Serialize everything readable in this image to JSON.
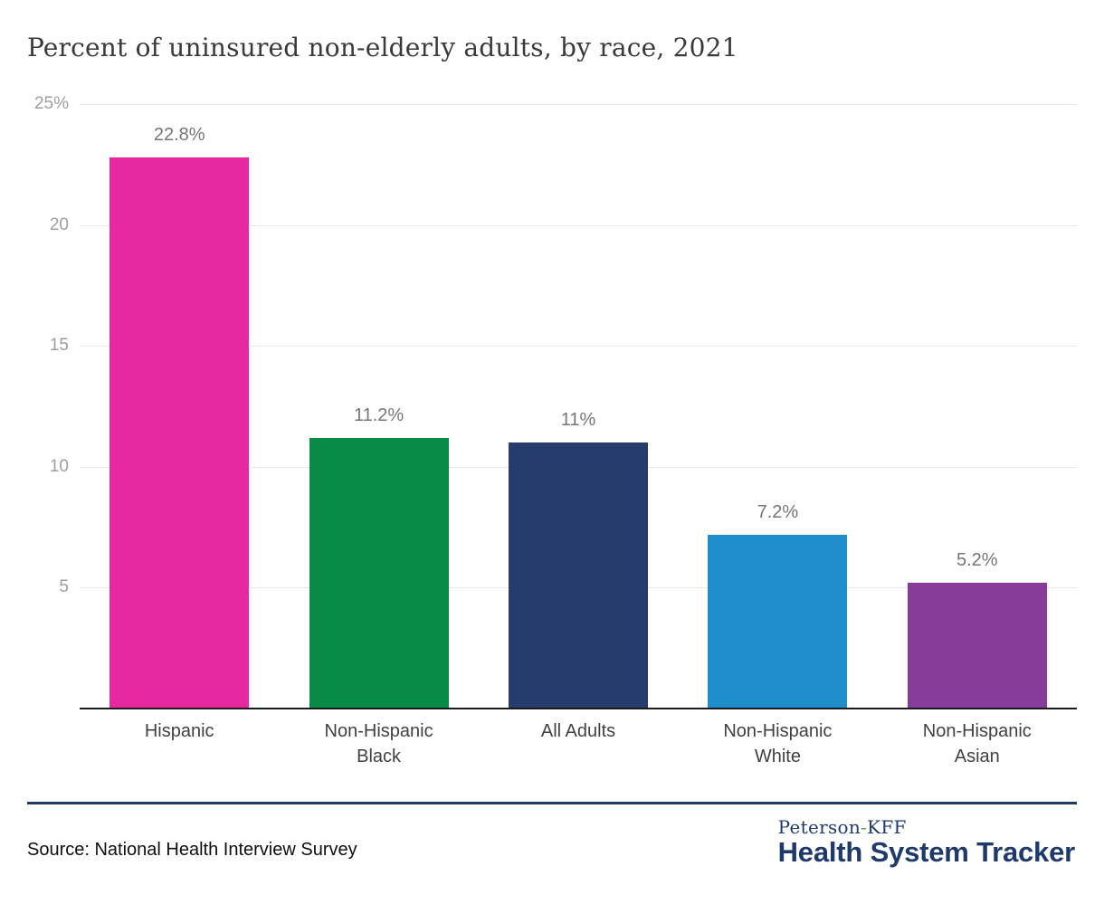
{
  "chart_data": {
    "type": "bar",
    "title": "Percent of uninsured non-elderly adults, by race, 2021",
    "categories": [
      "Hispanic",
      "Non-Hispanic Black",
      "All Adults",
      "Non-Hispanic White",
      "Non-Hispanic Asian"
    ],
    "category_lines": [
      [
        "Hispanic"
      ],
      [
        "Non-Hispanic",
        "Black"
      ],
      [
        "All Adults"
      ],
      [
        "Non-Hispanic",
        "White"
      ],
      [
        "Non-Hispanic",
        "Asian"
      ]
    ],
    "values": [
      22.8,
      11.2,
      11,
      7.2,
      5.2
    ],
    "data_labels": [
      "22.8%",
      "11.2%",
      "11%",
      "7.2%",
      "5.2%"
    ],
    "bar_colors": [
      "#e7289e",
      "#098b48",
      "#253c6d",
      "#1e8dc9",
      "#873c9c"
    ],
    "xlabel": "",
    "ylabel": "",
    "ylim": [
      0,
      25
    ],
    "y_ticks": [
      {
        "value": 25,
        "label": "25%"
      },
      {
        "value": 20,
        "label": "20"
      },
      {
        "value": 15,
        "label": "15"
      },
      {
        "value": 10,
        "label": "10"
      },
      {
        "value": 5,
        "label": "5"
      }
    ],
    "grid": true,
    "legend": false
  },
  "footer": {
    "source": "Source: National Health Interview Survey",
    "divider_color": "#1e3a6d",
    "logo": {
      "top_pre": "Peterson",
      "top_hyphen": "-",
      "top_post": "KFF",
      "bottom": "Health System Tracker",
      "navy": "#1e3a6d",
      "green": "#47a04b"
    }
  }
}
